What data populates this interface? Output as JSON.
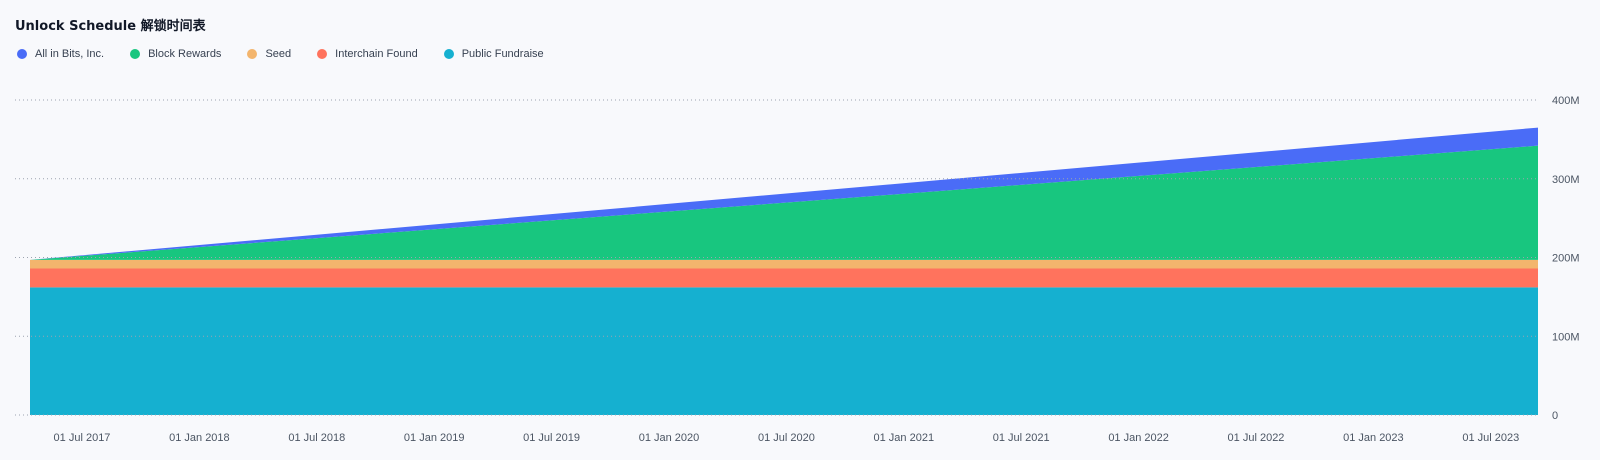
{
  "header": {
    "title": "Unlock Schedule  解锁时间表"
  },
  "legend": [
    {
      "label": "All in Bits, Inc.",
      "color": "#4a6cf7"
    },
    {
      "label": "Block Rewards",
      "color": "#18c67f"
    },
    {
      "label": "Seed",
      "color": "#f3b56d"
    },
    {
      "label": "Interchain Found",
      "color": "#ff735d"
    },
    {
      "label": "Public Fundraise",
      "color": "#15b0d0"
    }
  ],
  "chart_data": {
    "type": "area",
    "stacked": true,
    "title": "Unlock Schedule  解锁时间表",
    "x_range": [
      "2017-03-01",
      "2023-09-01"
    ],
    "ylim": [
      0,
      400
    ],
    "y_unit": "M",
    "y_ticks": [
      "0",
      "100M",
      "200M",
      "300M",
      "400M"
    ],
    "x_ticks": [
      "01 Jul 2017",
      "01 Jan 2018",
      "01 Jul 2018",
      "01 Jan 2019",
      "01 Jul 2019",
      "01 Jan 2020",
      "01 Jul 2020",
      "01 Jan 2021",
      "01 Jul 2021",
      "01 Jan 2022",
      "01 Jul 2022",
      "01 Jan 2023",
      "01 Jul 2023"
    ],
    "grid": true,
    "legend_position": "top-left",
    "x": [
      "2017-03",
      "2023-09"
    ],
    "series": [
      {
        "name": "Public Fundraise",
        "color": "#15b0d0",
        "values": [
          162,
          162
        ]
      },
      {
        "name": "Interchain Found",
        "color": "#ff735d",
        "values": [
          24,
          24
        ]
      },
      {
        "name": "Seed",
        "color": "#f3b56d",
        "values": [
          11,
          11
        ]
      },
      {
        "name": "Block Rewards",
        "color": "#18c67f",
        "values": [
          0,
          145
        ]
      },
      {
        "name": "All in Bits, Inc.",
        "color": "#4a6cf7",
        "values": [
          0,
          23
        ]
      }
    ]
  }
}
